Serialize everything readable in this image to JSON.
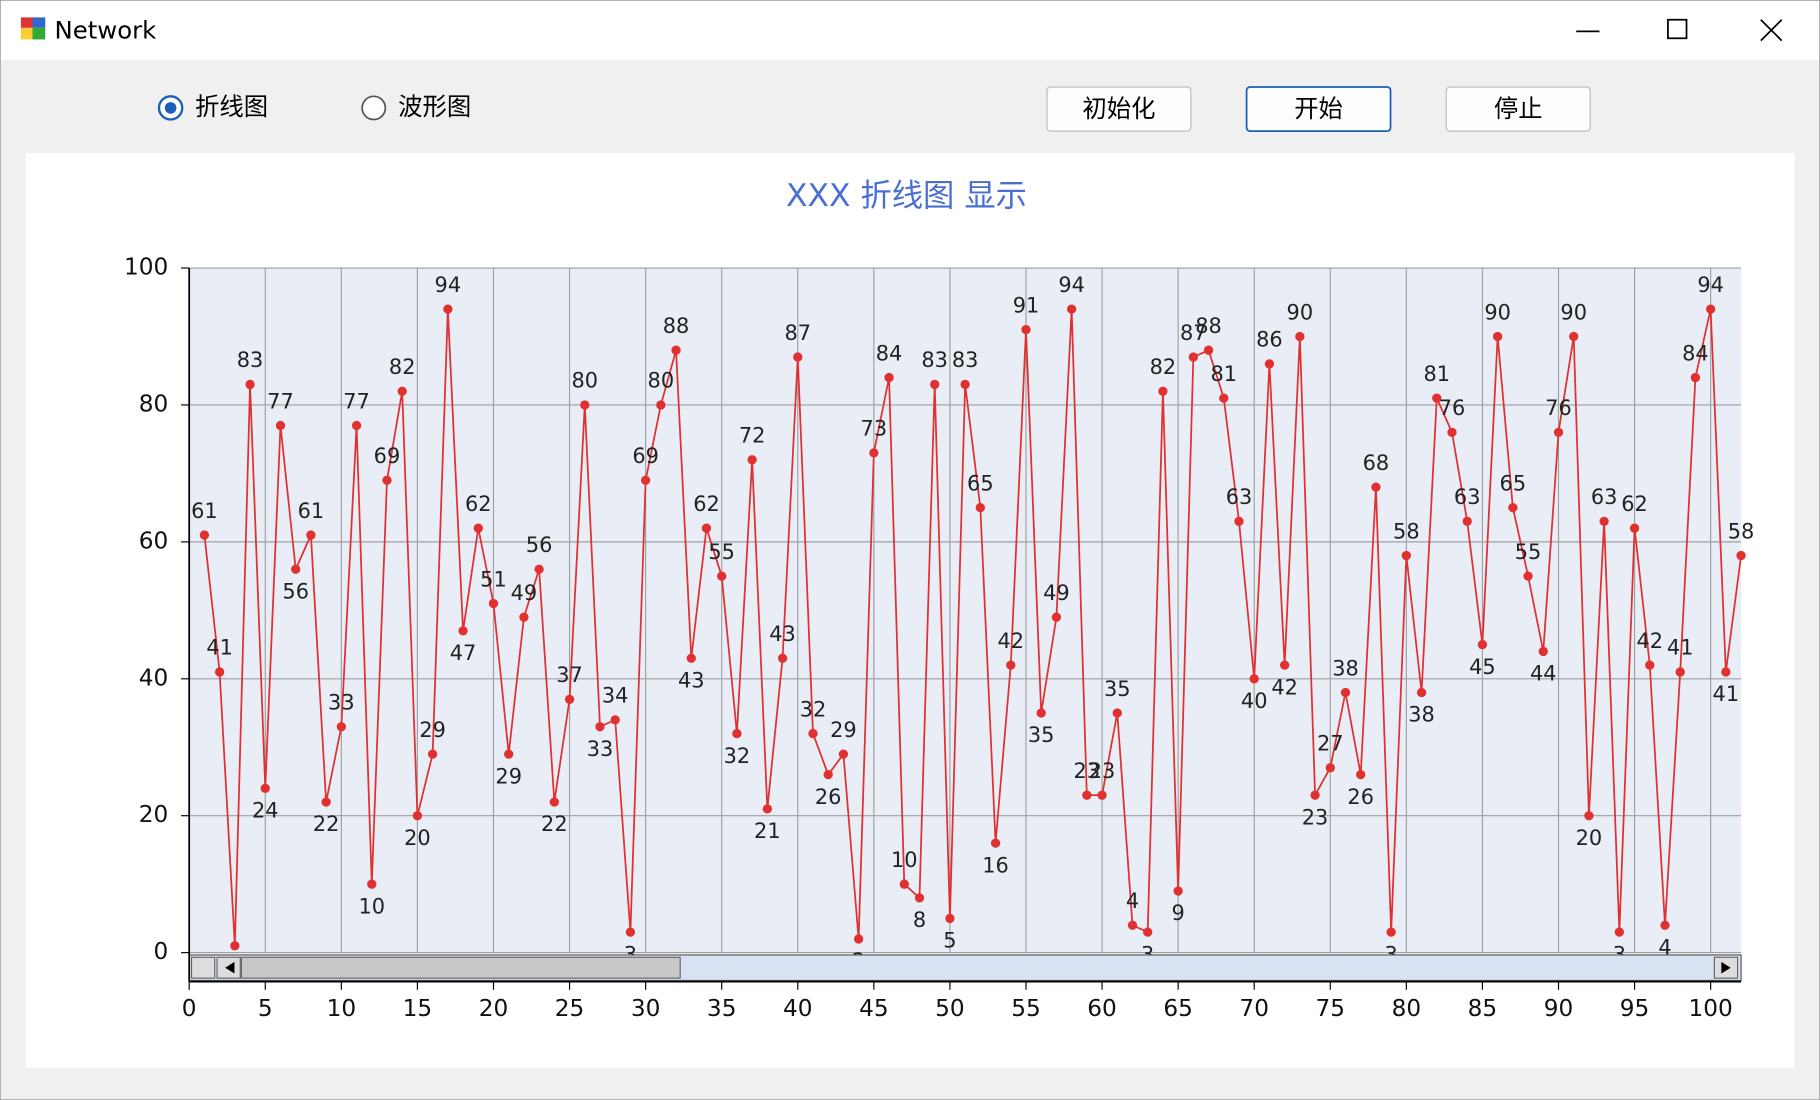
{
  "window": {
    "title": "Network",
    "radios": [
      {
        "label": "折线图",
        "checked": true
      },
      {
        "label": "波形图",
        "checked": false
      }
    ],
    "buttons": [
      "初始化",
      "开始",
      "停止"
    ]
  },
  "chart_data": {
    "type": "line",
    "title": "XXX 折线图 显示",
    "color": "#e03030",
    "x": [
      1,
      2,
      3,
      4,
      5,
      6,
      7,
      8,
      9,
      10,
      11,
      12,
      13,
      14,
      15,
      16,
      17,
      18,
      19,
      20,
      21,
      22,
      23,
      24,
      25,
      26,
      27,
      28,
      29,
      30,
      31,
      32,
      33,
      34,
      35,
      36,
      37,
      38,
      39,
      40,
      41,
      42,
      43,
      44,
      45,
      46,
      47,
      48,
      49,
      50,
      51,
      52,
      53,
      54,
      55,
      56,
      57,
      58,
      59,
      60,
      61,
      62,
      63,
      64,
      65,
      66,
      67,
      68,
      69,
      70,
      71,
      72,
      73,
      74,
      75,
      76,
      77,
      78,
      79,
      80,
      81,
      82,
      83,
      84,
      85,
      86,
      87,
      88,
      89,
      90,
      91,
      92,
      93,
      94,
      95,
      96,
      97,
      98,
      99,
      100,
      101,
      102
    ],
    "values": [
      61,
      41,
      1,
      83,
      24,
      77,
      56,
      61,
      22,
      33,
      77,
      10,
      69,
      82,
      20,
      29,
      94,
      47,
      62,
      51,
      29,
      49,
      56,
      22,
      37,
      80,
      33,
      34,
      3,
      69,
      80,
      88,
      43,
      62,
      55,
      32,
      72,
      21,
      43,
      87,
      32,
      26,
      29,
      2,
      73,
      84,
      10,
      8,
      83,
      5,
      83,
      65,
      16,
      42,
      91,
      35,
      49,
      94,
      23,
      23,
      35,
      4,
      3,
      82,
      9,
      87,
      88,
      81,
      63,
      40,
      86,
      42,
      90,
      23,
      27,
      38,
      26,
      68,
      3,
      58,
      38,
      81,
      76,
      63,
      45,
      90,
      65,
      55,
      44,
      76,
      90,
      20,
      63,
      3,
      62,
      42,
      4,
      41,
      84,
      94,
      41,
      58
    ],
    "xlim": [
      0,
      102
    ],
    "xticks": [
      0,
      5,
      10,
      15,
      20,
      25,
      30,
      35,
      40,
      45,
      50,
      55,
      60,
      65,
      70,
      75,
      80,
      85,
      90,
      95,
      100
    ],
    "ylim": [
      0,
      100
    ],
    "yticks": [
      0,
      20,
      40,
      60,
      80,
      100
    ],
    "grid": true
  }
}
